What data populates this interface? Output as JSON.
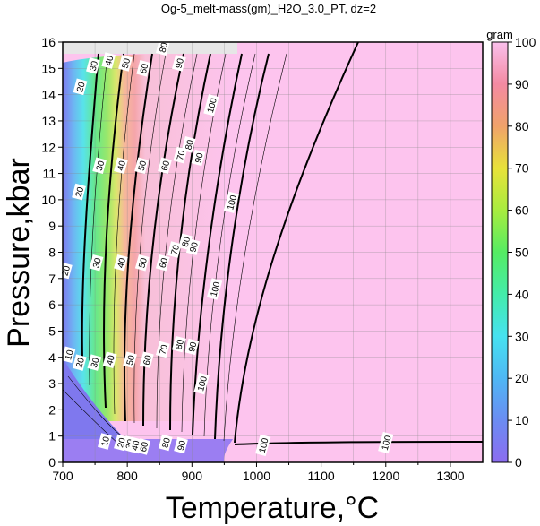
{
  "chart_data": {
    "type": "heatmap",
    "title": "Og-5_melt-mass(gm)_H2O_3.0_PT, dz=2",
    "xlabel": "Temperature,°C",
    "ylabel": "Pressure,kbar",
    "xlim": [
      700,
      1350
    ],
    "ylim": [
      0,
      16
    ],
    "x_ticks": [
      "700",
      "800",
      "900",
      "1000",
      "1100",
      "1200",
      "1300"
    ],
    "y_ticks": [
      "0",
      "1",
      "2",
      "3",
      "4",
      "5",
      "6",
      "7",
      "8",
      "9",
      "10",
      "11",
      "12",
      "13",
      "14",
      "15",
      "16"
    ],
    "grid": true,
    "colorbar": {
      "label": "gram",
      "range": [
        0,
        100
      ],
      "ticks": [
        "0",
        "10",
        "20",
        "30",
        "40",
        "50",
        "60",
        "70",
        "80",
        "90",
        "100"
      ],
      "placement": "right"
    },
    "contour_labels": [
      {
        "text": "20",
        "x": 727,
        "y": 14.3
      },
      {
        "text": "30",
        "x": 747,
        "y": 15.1
      },
      {
        "text": "40",
        "x": 771,
        "y": 15.3
      },
      {
        "text": "50",
        "x": 797,
        "y": 15.2
      },
      {
        "text": "60",
        "x": 825,
        "y": 15.0
      },
      {
        "text": "80",
        "x": 855,
        "y": 15.8
      },
      {
        "text": "90",
        "x": 880,
        "y": 15.2
      },
      {
        "text": "100",
        "x": 930,
        "y": 13.6
      },
      {
        "text": "20",
        "x": 725,
        "y": 10.3
      },
      {
        "text": "30",
        "x": 757,
        "y": 11.3
      },
      {
        "text": "40",
        "x": 790,
        "y": 11.3
      },
      {
        "text": "50",
        "x": 822,
        "y": 11.3
      },
      {
        "text": "60",
        "x": 858,
        "y": 11.3
      },
      {
        "text": "70",
        "x": 882,
        "y": 11.7
      },
      {
        "text": "80",
        "x": 895,
        "y": 12.1
      },
      {
        "text": "90",
        "x": 910,
        "y": 11.6
      },
      {
        "text": "100",
        "x": 961,
        "y": 9.9
      },
      {
        "text": "20",
        "x": 704,
        "y": 7.3
      },
      {
        "text": "30",
        "x": 752,
        "y": 7.6
      },
      {
        "text": "40",
        "x": 790,
        "y": 7.6
      },
      {
        "text": "50",
        "x": 823,
        "y": 7.6
      },
      {
        "text": "60",
        "x": 855,
        "y": 7.6
      },
      {
        "text": "70",
        "x": 873,
        "y": 8.1
      },
      {
        "text": "80",
        "x": 890,
        "y": 8.4
      },
      {
        "text": "90",
        "x": 902,
        "y": 8.2
      },
      {
        "text": "100",
        "x": 935,
        "y": 6.6
      },
      {
        "text": "10",
        "x": 709,
        "y": 4.1
      },
      {
        "text": "20",
        "x": 726,
        "y": 3.8
      },
      {
        "text": "30",
        "x": 749,
        "y": 3.8
      },
      {
        "text": "40",
        "x": 773,
        "y": 3.9
      },
      {
        "text": "50",
        "x": 804,
        "y": 3.9
      },
      {
        "text": "60",
        "x": 830,
        "y": 3.9
      },
      {
        "text": "70",
        "x": 855,
        "y": 4.3
      },
      {
        "text": "80",
        "x": 880,
        "y": 4.5
      },
      {
        "text": "90",
        "x": 900,
        "y": 4.4
      },
      {
        "text": "100",
        "x": 915,
        "y": 3.0
      },
      {
        "text": "10",
        "x": 765,
        "y": 0.8
      },
      {
        "text": "20",
        "x": 790,
        "y": 0.75
      },
      {
        "text": "30",
        "x": 803,
        "y": 0.7
      },
      {
        "text": "40",
        "x": 812,
        "y": 0.65
      },
      {
        "text": "60",
        "x": 825,
        "y": 0.6
      },
      {
        "text": "80",
        "x": 859,
        "y": 0.75
      },
      {
        "text": "90",
        "x": 883,
        "y": 0.65
      },
      {
        "text": "100",
        "x": 1010,
        "y": 0.65
      },
      {
        "text": "100",
        "x": 1200,
        "y": 0.75
      }
    ]
  }
}
